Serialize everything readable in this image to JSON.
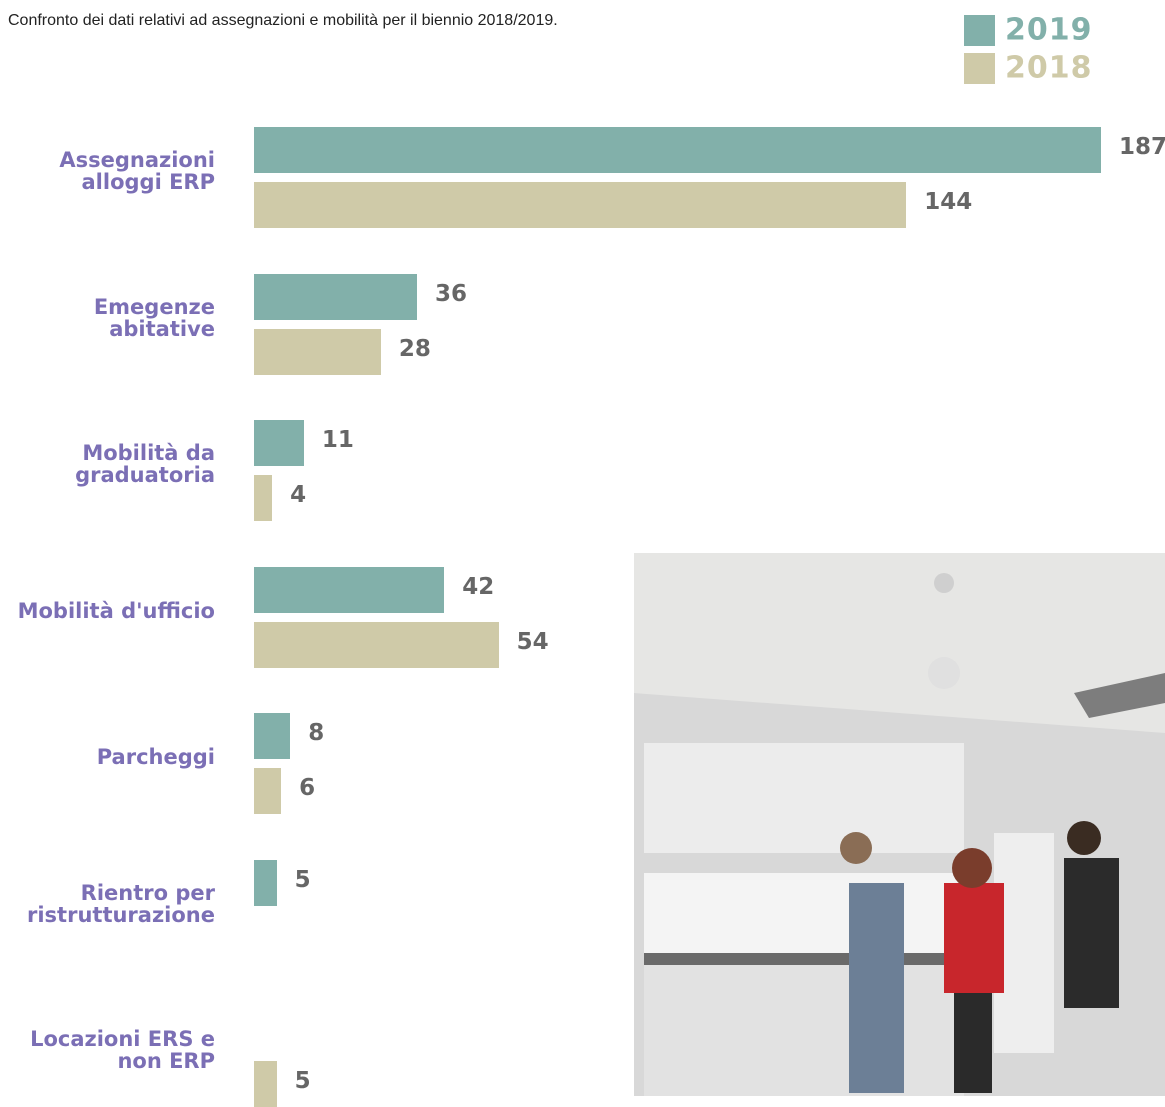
{
  "chart_data": {
    "type": "bar",
    "orientation": "horizontal",
    "subtitle": "Confronto dei dati relativi ad assegnazioni e mobilità per il biennio 2018/2019.",
    "categories": [
      "Assegnazioni alloggi ERP",
      "Emegenze abitative",
      "Mobilità da graduatoria",
      "Mobilità d'ufficio",
      "Parcheggi",
      "Rientro per ristrutturazione",
      "Locazioni ERS e non ERP"
    ],
    "series": [
      {
        "name": "2019",
        "color": "#82b0aa",
        "values": [
          187,
          36,
          11,
          42,
          8,
          5,
          null
        ]
      },
      {
        "name": "2018",
        "color": "#cfcaa8",
        "values": [
          144,
          28,
          4,
          54,
          6,
          null,
          5
        ]
      }
    ],
    "legend": "top-right"
  }
}
